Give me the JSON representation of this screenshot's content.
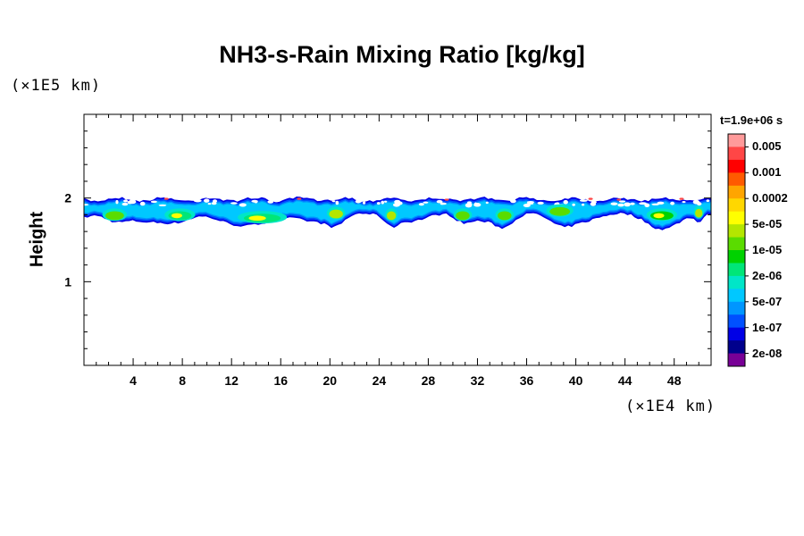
{
  "chart_data": {
    "type": "heatmap",
    "title": "NH3-s-Rain Mixing Ratio [kg/kg]",
    "ylabel": "Height",
    "xunit": "(×1E4 km)",
    "yunit": "(×1E5 km)",
    "time_label": "t=1.9e+06 s",
    "xlim": [
      0,
      51
    ],
    "ylim": [
      0,
      3
    ],
    "xticks": [
      4,
      8,
      12,
      16,
      20,
      24,
      28,
      32,
      36,
      40,
      44,
      48
    ],
    "xtick_labels": [
      "4",
      "8",
      "12",
      "16",
      "20",
      "24",
      "28",
      "32",
      "36",
      "40",
      "44",
      "48"
    ],
    "yticks": [
      1,
      2
    ],
    "ytick_labels": [
      "1",
      "2"
    ],
    "colorbar": {
      "labels": [
        "0.005",
        "0.001",
        "0.0002",
        "5e-05",
        "1e-05",
        "2e-06",
        "5e-07",
        "1e-07",
        "2e-08"
      ],
      "colors_top_to_bottom": [
        "#ff9a9a",
        "#ff4646",
        "#ff0000",
        "#ff5a00",
        "#ffa500",
        "#ffd700",
        "#ffff00",
        "#b4e600",
        "#5adc00",
        "#00d200",
        "#00e678",
        "#00e6c8",
        "#00c8ff",
        "#0096ff",
        "#0050ff",
        "#0000e6",
        "#00008c",
        "#780096"
      ]
    },
    "layer": {
      "description": "thin rain layer",
      "height_top": 2.0,
      "height_bottom": 1.7,
      "blobs": [
        {
          "x": 2.5,
          "y": 1.8,
          "w": 2.0,
          "level": 9
        },
        {
          "x": 7.8,
          "y": 1.8,
          "w": 2.5,
          "level": 7
        },
        {
          "x": 14.5,
          "y": 1.77,
          "w": 4.0,
          "level": 7
        },
        {
          "x": 20.5,
          "y": 1.82,
          "w": 1.5,
          "level": 10
        },
        {
          "x": 25.0,
          "y": 1.8,
          "w": 1.0,
          "level": 10
        },
        {
          "x": 30.8,
          "y": 1.8,
          "w": 1.5,
          "level": 9
        },
        {
          "x": 34.2,
          "y": 1.8,
          "w": 1.5,
          "level": 9
        },
        {
          "x": 38.7,
          "y": 1.85,
          "w": 2.2,
          "level": 9
        },
        {
          "x": 47.0,
          "y": 1.8,
          "w": 2.5,
          "level": 8
        },
        {
          "x": 50.0,
          "y": 1.83,
          "w": 0.8,
          "level": 10
        }
      ]
    }
  }
}
